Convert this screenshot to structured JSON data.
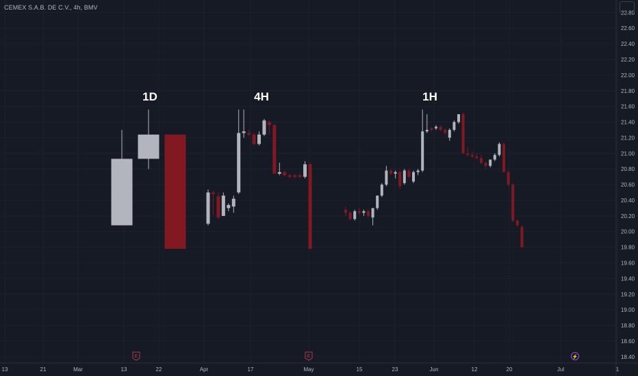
{
  "header": {
    "symbol": "CEMEX S.A.B. DE C.V., 4h, BMV"
  },
  "colors": {
    "background": "#161a25",
    "up": "#b2b5be",
    "down": "#801922",
    "grid": "#1e2230",
    "text": "#b2b5be",
    "earnings_marker": "#b03a45",
    "dividend_marker": "#9c4dd4"
  },
  "chart_data": {
    "type": "candlestick",
    "title": "CEMEX S.A.B. DE C.V., 4h, BMV",
    "ylim": [
      18.32,
      22.96
    ],
    "y_ticks": [
      "22.80",
      "22.60",
      "22.40",
      "22.20",
      "22.00",
      "21.80",
      "21.60",
      "21.40",
      "21.20",
      "21.00",
      "20.80",
      "20.60",
      "20.40",
      "20.20",
      "20.00",
      "19.80",
      "19.60",
      "19.40",
      "19.20",
      "19.00",
      "18.80",
      "18.60",
      "18.40"
    ],
    "x_ticks": [
      "13",
      "21",
      "Mar",
      "13",
      "22",
      "Apr",
      "17",
      "May",
      "15",
      "23",
      "Jun",
      "12",
      "20",
      "Jul",
      "1"
    ],
    "grid": true,
    "annotations": [
      "1D",
      "4H",
      "1H"
    ],
    "event_markers": [
      {
        "type": "earnings",
        "symbol": "E",
        "near": "Mar 22"
      },
      {
        "type": "earnings",
        "symbol": "E",
        "near": "May"
      },
      {
        "type": "dividend",
        "symbol": "⚡",
        "near": "Jul"
      }
    ],
    "groups": [
      {
        "label": "1D",
        "candles": [
          {
            "o": 20.08,
            "h": 21.3,
            "l": 20.08,
            "c": 20.93
          },
          {
            "o": 20.93,
            "h": 21.56,
            "l": 20.8,
            "c": 21.24
          },
          {
            "o": 21.24,
            "h": 21.24,
            "l": 19.78,
            "c": 19.78
          }
        ]
      },
      {
        "label": "4H",
        "candles": [
          {
            "o": 20.1,
            "h": 20.54,
            "l": 20.08,
            "c": 20.5
          },
          {
            "o": 20.5,
            "h": 20.52,
            "l": 20.22,
            "c": 20.48
          },
          {
            "o": 20.45,
            "h": 20.5,
            "l": 20.16,
            "c": 20.18
          },
          {
            "o": 20.2,
            "h": 20.5,
            "l": 20.2,
            "c": 20.46
          },
          {
            "o": 20.3,
            "h": 20.36,
            "l": 20.26,
            "c": 20.34
          },
          {
            "o": 20.32,
            "h": 20.46,
            "l": 20.24,
            "c": 20.42
          },
          {
            "o": 20.5,
            "h": 21.56,
            "l": 20.48,
            "c": 21.26
          },
          {
            "o": 21.26,
            "h": 21.56,
            "l": 21.2,
            "c": 21.28
          },
          {
            "o": 21.26,
            "h": 21.3,
            "l": 21.22,
            "c": 21.24
          },
          {
            "o": 21.24,
            "h": 21.26,
            "l": 21.1,
            "c": 21.12
          },
          {
            "o": 21.12,
            "h": 21.28,
            "l": 21.1,
            "c": 21.24
          },
          {
            "o": 21.24,
            "h": 21.44,
            "l": 21.22,
            "c": 21.42
          },
          {
            "o": 21.4,
            "h": 21.42,
            "l": 21.24,
            "c": 21.36
          },
          {
            "o": 21.36,
            "h": 21.38,
            "l": 20.74,
            "c": 20.74
          },
          {
            "o": 20.74,
            "h": 20.88,
            "l": 20.72,
            "c": 20.76
          },
          {
            "o": 20.76,
            "h": 20.78,
            "l": 20.7,
            "c": 20.72
          },
          {
            "o": 20.72,
            "h": 20.74,
            "l": 20.68,
            "c": 20.7
          },
          {
            "o": 20.72,
            "h": 20.74,
            "l": 20.68,
            "c": 20.7
          },
          {
            "o": 20.72,
            "h": 20.74,
            "l": 20.68,
            "c": 20.7
          },
          {
            "o": 20.7,
            "h": 20.9,
            "l": 20.68,
            "c": 20.86
          },
          {
            "o": 20.86,
            "h": 20.88,
            "l": 19.78,
            "c": 19.78
          }
        ]
      },
      {
        "label": "1H",
        "candles": [
          {
            "o": 20.28,
            "h": 20.32,
            "l": 20.2,
            "c": 20.24
          },
          {
            "o": 20.24,
            "h": 20.26,
            "l": 20.14,
            "c": 20.16
          },
          {
            "o": 20.16,
            "h": 20.28,
            "l": 20.14,
            "c": 20.26
          },
          {
            "o": 20.26,
            "h": 20.3,
            "l": 20.22,
            "c": 20.24
          },
          {
            "o": 20.24,
            "h": 20.28,
            "l": 20.2,
            "c": 20.26
          },
          {
            "o": 20.26,
            "h": 20.28,
            "l": 20.18,
            "c": 20.2
          },
          {
            "o": 20.18,
            "h": 20.3,
            "l": 20.08,
            "c": 20.3
          },
          {
            "o": 20.3,
            "h": 20.46,
            "l": 20.28,
            "c": 20.46
          },
          {
            "o": 20.46,
            "h": 20.62,
            "l": 20.44,
            "c": 20.6
          },
          {
            "o": 20.6,
            "h": 20.84,
            "l": 20.58,
            "c": 20.78
          },
          {
            "o": 20.78,
            "h": 20.8,
            "l": 20.72,
            "c": 20.74
          },
          {
            "o": 20.74,
            "h": 20.78,
            "l": 20.68,
            "c": 20.76
          },
          {
            "o": 20.76,
            "h": 20.78,
            "l": 20.54,
            "c": 20.58
          },
          {
            "o": 20.62,
            "h": 20.8,
            "l": 20.6,
            "c": 20.78
          },
          {
            "o": 20.78,
            "h": 20.8,
            "l": 20.68,
            "c": 20.7
          },
          {
            "o": 20.64,
            "h": 20.78,
            "l": 20.62,
            "c": 20.76
          },
          {
            "o": 20.76,
            "h": 20.8,
            "l": 20.72,
            "c": 20.78
          },
          {
            "o": 20.78,
            "h": 21.56,
            "l": 20.76,
            "c": 21.28
          },
          {
            "o": 21.28,
            "h": 21.5,
            "l": 21.26,
            "c": 21.3
          },
          {
            "o": 21.32,
            "h": 21.34,
            "l": 21.28,
            "c": 21.3
          },
          {
            "o": 21.32,
            "h": 21.36,
            "l": 21.3,
            "c": 21.34
          },
          {
            "o": 21.34,
            "h": 21.36,
            "l": 21.28,
            "c": 21.3
          },
          {
            "o": 21.3,
            "h": 21.32,
            "l": 21.24,
            "c": 21.26
          },
          {
            "o": 21.2,
            "h": 21.32,
            "l": 21.16,
            "c": 21.3
          },
          {
            "o": 21.3,
            "h": 21.42,
            "l": 21.28,
            "c": 21.4
          },
          {
            "o": 21.4,
            "h": 21.5,
            "l": 21.38,
            "c": 21.5
          },
          {
            "o": 21.5,
            "h": 21.52,
            "l": 21.0,
            "c": 21.0
          },
          {
            "o": 21.0,
            "h": 21.08,
            "l": 20.96,
            "c": 20.98
          },
          {
            "o": 20.98,
            "h": 21.02,
            "l": 20.94,
            "c": 20.96
          },
          {
            "o": 20.96,
            "h": 21.0,
            "l": 20.92,
            "c": 20.94
          },
          {
            "o": 20.94,
            "h": 20.98,
            "l": 20.86,
            "c": 20.88
          },
          {
            "o": 20.88,
            "h": 20.9,
            "l": 20.8,
            "c": 20.84
          },
          {
            "o": 20.84,
            "h": 20.92,
            "l": 20.82,
            "c": 20.92
          },
          {
            "o": 20.92,
            "h": 21.0,
            "l": 20.9,
            "c": 20.98
          },
          {
            "o": 20.98,
            "h": 21.14,
            "l": 20.96,
            "c": 21.12
          },
          {
            "o": 21.12,
            "h": 21.14,
            "l": 20.76,
            "c": 20.76
          },
          {
            "o": 20.76,
            "h": 20.78,
            "l": 20.58,
            "c": 20.6
          },
          {
            "o": 20.6,
            "h": 20.62,
            "l": 20.12,
            "c": 20.14
          },
          {
            "o": 20.14,
            "h": 20.16,
            "l": 20.06,
            "c": 20.08
          },
          {
            "o": 20.06,
            "h": 20.08,
            "l": 19.8,
            "c": 19.8
          }
        ]
      }
    ]
  }
}
